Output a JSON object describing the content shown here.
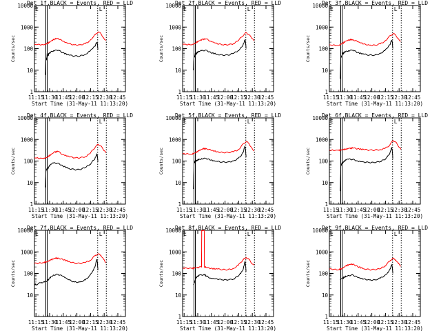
{
  "figure": {
    "background": "#ffffff",
    "axis_color": "#000000",
    "events_color": "#000000",
    "lld_color": "#ff0000"
  },
  "chart_data": [
    {
      "type": "line",
      "title": "Det 1f,BLACK = Events, RED = LLD",
      "xlabel": "Start Time (31-May-11 11:13:20)",
      "ylabel": "Counts/sec",
      "xticks": [
        "11:15",
        "11:30",
        "11:45",
        "12:00",
        "12:15",
        "12:30",
        "12:45"
      ],
      "yticks": [
        "1",
        "10",
        "100",
        "1000",
        "10000"
      ],
      "yscale": "log",
      "ylim": [
        1,
        10000
      ],
      "x_units": "minutes after 11:13:20",
      "xlim": [
        0,
        100
      ],
      "series": [
        {
          "name": "Events",
          "color": "#000000",
          "x": [
            12,
            12.6,
            13,
            14.5,
            16,
            18,
            21,
            26,
            31,
            38,
            44,
            50,
            56,
            61,
            64,
            66.5,
            68.5,
            69.2,
            69.8
          ],
          "y": [
            6,
            60,
            30,
            45,
            60,
            70,
            80,
            85,
            65,
            50,
            45,
            45,
            55,
            75,
            100,
            130,
            200,
            170,
            90
          ]
        },
        {
          "name": "LLD",
          "color": "#ff0000",
          "x": [
            0,
            10,
            14,
            18,
            22,
            26,
            31,
            38,
            44,
            50,
            56,
            61,
            64,
            67,
            70,
            73,
            76,
            78.5
          ],
          "y": [
            160,
            150,
            170,
            220,
            280,
            300,
            220,
            170,
            150,
            150,
            170,
            230,
            330,
            450,
            600,
            500,
            320,
            240
          ]
        }
      ],
      "annotations": [
        "L",
        "E"
      ]
    },
    {
      "type": "line",
      "title": "Det 2f,BLACK = Events, RED = LLD",
      "xlabel": "Start Time (31-May-11 11:13:20)",
      "ylabel": "Counts/sec",
      "xticks": [
        "11:15",
        "11:30",
        "11:45",
        "12:00",
        "12:15",
        "12:30",
        "12:45"
      ],
      "yticks": [
        "1",
        "10",
        "100",
        "1000",
        "10000"
      ],
      "yscale": "log",
      "ylim": [
        1,
        10000
      ],
      "x_units": "minutes after 11:13:20",
      "xlim": [
        0,
        100
      ],
      "series": [
        {
          "name": "Events",
          "color": "#000000",
          "x": [
            12,
            12.6,
            13,
            14.5,
            16,
            18,
            21,
            26,
            31,
            38,
            44,
            50,
            56,
            61,
            64,
            66.5,
            68.5,
            69.2,
            69.8
          ],
          "y": [
            10,
            60,
            40,
            55,
            65,
            75,
            80,
            85,
            65,
            55,
            50,
            50,
            60,
            80,
            110,
            150,
            250,
            200,
            100
          ]
        },
        {
          "name": "LLD",
          "color": "#ff0000",
          "x": [
            0,
            10,
            14,
            18,
            22,
            26,
            31,
            38,
            44,
            50,
            56,
            61,
            64,
            67,
            70,
            73,
            76,
            78.5
          ],
          "y": [
            160,
            150,
            180,
            230,
            270,
            280,
            220,
            170,
            150,
            150,
            170,
            230,
            320,
            420,
            550,
            450,
            300,
            230
          ]
        }
      ],
      "annotations": [
        "L",
        "E"
      ]
    },
    {
      "type": "line",
      "title": "Det 3f,BLACK = Events, RED = LLD",
      "xlabel": "Start Time (31-May-11 11:13:20)",
      "ylabel": "Counts/sec",
      "xticks": [
        "11:15",
        "11:30",
        "11:45",
        "12:00",
        "12:15",
        "12:30",
        "12:45"
      ],
      "yticks": [
        "1",
        "10",
        "100",
        "1000",
        "10000"
      ],
      "yscale": "log",
      "ylim": [
        1,
        10000
      ],
      "x_units": "minutes after 11:13:20",
      "xlim": [
        0,
        100
      ],
      "series": [
        {
          "name": "Events",
          "color": "#000000",
          "x": [
            12,
            12.6,
            13,
            14.5,
            16,
            18,
            21,
            26,
            31,
            38,
            44,
            50,
            56,
            61,
            64,
            66.5,
            68.5,
            69.2,
            69.8
          ],
          "y": [
            4,
            45,
            40,
            55,
            65,
            75,
            80,
            85,
            65,
            55,
            50,
            50,
            60,
            80,
            110,
            150,
            250,
            200,
            100
          ]
        },
        {
          "name": "LLD",
          "color": "#ff0000",
          "x": [
            0,
            10,
            14,
            18,
            22,
            26,
            31,
            38,
            44,
            50,
            56,
            61,
            64,
            67,
            70,
            73,
            76,
            78.5
          ],
          "y": [
            150,
            140,
            170,
            220,
            260,
            260,
            210,
            165,
            145,
            145,
            165,
            220,
            300,
            400,
            500,
            420,
            280,
            220
          ]
        }
      ],
      "annotations": [
        "L",
        "E"
      ]
    },
    {
      "type": "line",
      "title": "Det 4f,BLACK = Events, RED = LLD",
      "xlabel": "Start Time (31-May-11 11:13:20)",
      "ylabel": "Counts/sec",
      "xticks": [
        "11:15",
        "11:30",
        "11:45",
        "12:00",
        "12:15",
        "12:30",
        "12:45"
      ],
      "yticks": [
        "1",
        "10",
        "100",
        "1000",
        "10000"
      ],
      "yscale": "log",
      "ylim": [
        1,
        10000
      ],
      "x_units": "minutes after 11:13:20",
      "xlim": [
        0,
        100
      ],
      "series": [
        {
          "name": "Events",
          "color": "#000000",
          "x": [
            12,
            12.6,
            13,
            14.5,
            16,
            18,
            21,
            26,
            31,
            38,
            44,
            50,
            56,
            61,
            64,
            66.5,
            68.5,
            69.2,
            69.8
          ],
          "y": [
            6,
            35,
            40,
            45,
            55,
            70,
            80,
            80,
            60,
            45,
            40,
            40,
            50,
            70,
            100,
            130,
            200,
            170,
            90
          ]
        },
        {
          "name": "LLD",
          "color": "#ff0000",
          "x": [
            0,
            10,
            14,
            18,
            22,
            26,
            31,
            38,
            44,
            50,
            56,
            61,
            64,
            67,
            70,
            73,
            76,
            78.5
          ],
          "y": [
            140,
            130,
            150,
            200,
            260,
            280,
            200,
            160,
            140,
            140,
            160,
            220,
            320,
            450,
            600,
            500,
            320,
            240
          ]
        }
      ],
      "annotations": [
        "L",
        "E"
      ]
    },
    {
      "type": "line",
      "title": "Det 5f,BLACK = Events, RED = LLD",
      "xlabel": "Start Time (31-May-11 11:13:20)",
      "ylabel": "Counts/sec",
      "xticks": [
        "11:15",
        "11:30",
        "11:45",
        "12:00",
        "12:15",
        "12:30",
        "12:45"
      ],
      "yticks": [
        "1",
        "10",
        "100",
        "1000",
        "10000"
      ],
      "yscale": "log",
      "ylim": [
        1,
        10000
      ],
      "x_units": "minutes after 11:13:20",
      "xlim": [
        0,
        100
      ],
      "series": [
        {
          "name": "Events",
          "color": "#000000",
          "x": [
            12,
            12.6,
            13,
            14.5,
            16,
            18,
            21,
            26,
            31,
            38,
            44,
            50,
            56,
            61,
            64,
            66.5,
            68.5,
            69.2,
            69.8
          ],
          "y": [
            5,
            90,
            85,
            100,
            110,
            120,
            130,
            130,
            110,
            95,
            90,
            90,
            100,
            130,
            170,
            250,
            500,
            350,
            150
          ]
        },
        {
          "name": "LLD",
          "color": "#ff0000",
          "x": [
            0,
            10,
            14,
            18,
            22,
            26,
            31,
            38,
            44,
            50,
            56,
            61,
            64,
            67,
            70,
            73,
            76,
            78.5
          ],
          "y": [
            220,
            210,
            240,
            300,
            370,
            380,
            320,
            270,
            250,
            250,
            270,
            330,
            450,
            650,
            800,
            650,
            400,
            300
          ]
        }
      ],
      "annotations": [
        "L",
        "E"
      ]
    },
    {
      "type": "line",
      "title": "Det 6f,BLACK = Events, RED = LLD",
      "xlabel": "Start Time (31-May-11 11:13:20)",
      "ylabel": "Counts/sec",
      "xticks": [
        "11:15",
        "11:30",
        "11:45",
        "12:00",
        "12:15",
        "12:30",
        "12:45"
      ],
      "yticks": [
        "1",
        "10",
        "100",
        "1000",
        "10000"
      ],
      "yscale": "log",
      "ylim": [
        1,
        10000
      ],
      "x_units": "minutes after 11:13:20",
      "xlim": [
        0,
        100
      ],
      "series": [
        {
          "name": "Events",
          "color": "#000000",
          "x": [
            12,
            12.6,
            13,
            14.5,
            16,
            18,
            21,
            26,
            31,
            38,
            44,
            50,
            56,
            61,
            64,
            66.5,
            68.5,
            69.2,
            69.8
          ],
          "y": [
            4,
            70,
            65,
            80,
            95,
            110,
            120,
            120,
            100,
            90,
            85,
            85,
            95,
            120,
            160,
            230,
            420,
            300,
            130
          ]
        },
        {
          "name": "LLD",
          "color": "#ff0000",
          "x": [
            0,
            10,
            14,
            18,
            22,
            26,
            31,
            38,
            44,
            50,
            56,
            61,
            64,
            67,
            70,
            73,
            76,
            78.5
          ],
          "y": [
            320,
            310,
            330,
            360,
            390,
            400,
            370,
            340,
            320,
            320,
            340,
            380,
            450,
            600,
            900,
            750,
            480,
            350
          ]
        }
      ],
      "annotations": [
        "L",
        "E"
      ]
    },
    {
      "type": "line",
      "title": "Det 7f,BLACK = Events, RED = LLD",
      "xlabel": "Start Time (31-May-11 11:13:20)",
      "ylabel": "Counts/sec",
      "xticks": [
        "11:15",
        "11:30",
        "11:45",
        "12:00",
        "12:15",
        "12:30",
        "12:45"
      ],
      "yticks": [
        "10",
        "100",
        "1000",
        "10000"
      ],
      "yscale": "log",
      "ylim": [
        1,
        10000
      ],
      "x_units": "minutes after 11:13:20",
      "xlim": [
        0,
        100
      ],
      "series": [
        {
          "name": "Events",
          "color": "#000000",
          "x": [
            0,
            2,
            5,
            8,
            11,
            14,
            16,
            18,
            21,
            26,
            31,
            38,
            44,
            50,
            56,
            61,
            64,
            66.5,
            68.5,
            69.2,
            69.8
          ],
          "y": [
            33,
            30,
            35,
            38,
            40,
            45,
            55,
            70,
            85,
            90,
            75,
            50,
            40,
            40,
            50,
            80,
            130,
            200,
            450,
            320,
            140
          ]
        },
        {
          "name": "LLD",
          "color": "#ff0000",
          "x": [
            0,
            5,
            10,
            14,
            18,
            22,
            26,
            31,
            38,
            44,
            50,
            56,
            61,
            64,
            67,
            70,
            73,
            76,
            78.5
          ],
          "y": [
            290,
            300,
            320,
            350,
            420,
            500,
            520,
            450,
            360,
            300,
            290,
            320,
            400,
            520,
            700,
            800,
            700,
            450,
            320
          ]
        }
      ],
      "annotations": [
        "L",
        "E"
      ]
    },
    {
      "type": "line",
      "title": "Det 8f,BLACK = Events, RED = LLD",
      "xlabel": "Start Time (31-May-11 11:13:20)",
      "ylabel": "Counts/sec",
      "xticks": [
        "11:15",
        "11:30",
        "11:45",
        "12:00",
        "12:15",
        "12:30",
        "12:45"
      ],
      "yticks": [
        "1",
        "10",
        "100",
        "1000",
        "10000"
      ],
      "yscale": "log",
      "ylim": [
        1,
        10000
      ],
      "x_units": "minutes after 11:13:20",
      "xlim": [
        0,
        100
      ],
      "series": [
        {
          "name": "Events",
          "color": "#000000",
          "x": [
            12,
            14.5,
            16,
            18,
            21,
            24,
            26,
            31,
            38,
            44,
            50,
            56,
            61,
            64,
            66.5,
            68.5,
            69.2,
            69.8
          ],
          "y": [
            30,
            60,
            70,
            80,
            85,
            90,
            75,
            60,
            55,
            50,
            50,
            55,
            75,
            100,
            150,
            350,
            250,
            120
          ]
        },
        {
          "name": "LLD",
          "color": "#ff0000",
          "x": [
            0,
            10,
            14,
            18,
            20.8,
            21,
            23.8,
            24,
            26,
            31,
            38,
            44,
            50,
            56,
            61,
            64,
            67,
            70,
            73,
            76,
            78.5
          ],
          "y": [
            180,
            170,
            180,
            190,
            200,
            10000,
            10000,
            200,
            190,
            170,
            160,
            150,
            150,
            170,
            230,
            330,
            450,
            550,
            450,
            300,
            240
          ]
        }
      ],
      "annotations": [
        "L",
        "E"
      ]
    },
    {
      "type": "line",
      "title": "Det 9f,BLACK = Events, RED = LLD",
      "xlabel": "Start Time (31-May-11 11:13:20)",
      "ylabel": "Counts/sec",
      "xticks": [
        "11:15",
        "11:30",
        "11:45",
        "12:00",
        "12:15",
        "12:30",
        "12:45"
      ],
      "yticks": [
        "1",
        "10",
        "100",
        "1000",
        "10000"
      ],
      "yscale": "log",
      "ylim": [
        1,
        10000
      ],
      "x_units": "minutes after 11:13:20",
      "xlim": [
        0,
        100
      ],
      "series": [
        {
          "name": "Events",
          "color": "#000000",
          "x": [
            12,
            14.5,
            16,
            18,
            21,
            26,
            31,
            38,
            44,
            50,
            56,
            61,
            64,
            66.5,
            68.5,
            69.2,
            69.8
          ],
          "y": [
            50,
            60,
            65,
            75,
            80,
            85,
            65,
            55,
            50,
            50,
            60,
            80,
            110,
            150,
            250,
            200,
            100
          ]
        },
        {
          "name": "LLD",
          "color": "#ff0000",
          "x": [
            0,
            10,
            14,
            18,
            22,
            26,
            31,
            38,
            44,
            50,
            56,
            61,
            64,
            67,
            70,
            73,
            76,
            78.5
          ],
          "y": [
            160,
            150,
            170,
            220,
            260,
            270,
            210,
            165,
            150,
            150,
            165,
            220,
            300,
            400,
            500,
            420,
            280,
            220
          ]
        }
      ],
      "annotations": [
        "L",
        "E"
      ]
    }
  ]
}
